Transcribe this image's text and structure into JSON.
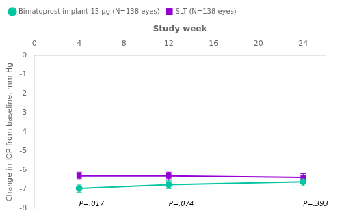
{
  "chart_data": {
    "type": "line",
    "x_label": "Study week",
    "y_label": "Change in IOP from baseline, mm Hg",
    "x": [
      4,
      12,
      24
    ],
    "series": [
      {
        "name": "Bimatoprost implant 15 μg (N=138 eyes)",
        "color": "#00C5A0",
        "marker": "circle",
        "values": [
          -6.95,
          -6.75,
          -6.6
        ],
        "errors": [
          0.22,
          0.2,
          0.22
        ]
      },
      {
        "name": "SLT (N=138 eyes)",
        "color": "#9400D3",
        "marker": "square",
        "values": [
          -6.3,
          -6.3,
          -6.38
        ],
        "errors": [
          0.2,
          0.2,
          0.2
        ]
      }
    ],
    "annotations": [
      {
        "x": 4,
        "y": -7.6,
        "text": "P=.017"
      },
      {
        "x": 12,
        "y": -7.6,
        "text": "P=.074"
      },
      {
        "x": 24,
        "y": -7.6,
        "text": "P=.393"
      }
    ],
    "xlim": [
      0,
      26
    ],
    "ylim": [
      -8,
      0
    ],
    "xticks": [
      0,
      4,
      8,
      12,
      16,
      20,
      24
    ],
    "yticks": [
      0,
      -1,
      -2,
      -3,
      -4,
      -5,
      -6,
      -7,
      -8
    ],
    "legend": "upper left",
    "grid": false
  }
}
